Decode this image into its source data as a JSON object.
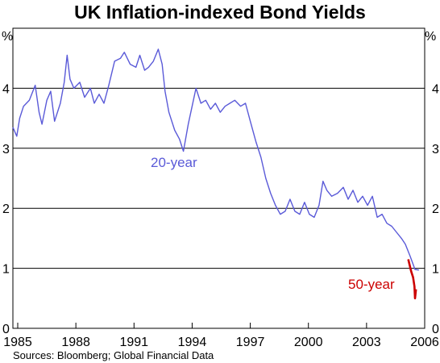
{
  "chart_data": {
    "type": "line",
    "title": "UK Inflation-indexed Bond Yields",
    "y_unit_left": "%",
    "y_unit_right": "%",
    "source": "Sources: Bloomberg; Global Financial Data",
    "x_range": [
      1984.75,
      2006.0
    ],
    "ylim": [
      0,
      5
    ],
    "y_ticks": [
      0,
      1,
      2,
      3,
      4
    ],
    "x_tick_labels": [
      "1985",
      "1988",
      "1991",
      "1994",
      "1997",
      "2000",
      "2003",
      "2006"
    ],
    "x_tick_values": [
      1985,
      1988,
      1991,
      1994,
      1997,
      2000,
      2003,
      2006
    ],
    "grid": true,
    "series": [
      {
        "name": "20-year",
        "color": "#5a5ad8",
        "points": [
          [
            1984.75,
            3.35
          ],
          [
            1984.95,
            3.2
          ],
          [
            1985.1,
            3.5
          ],
          [
            1985.3,
            3.7
          ],
          [
            1985.6,
            3.8
          ],
          [
            1985.9,
            4.05
          ],
          [
            1986.1,
            3.6
          ],
          [
            1986.25,
            3.4
          ],
          [
            1986.5,
            3.8
          ],
          [
            1986.7,
            3.95
          ],
          [
            1986.9,
            3.45
          ],
          [
            1987.2,
            3.75
          ],
          [
            1987.4,
            4.1
          ],
          [
            1987.55,
            4.55
          ],
          [
            1987.7,
            4.15
          ],
          [
            1987.9,
            4.0
          ],
          [
            1988.2,
            4.1
          ],
          [
            1988.45,
            3.85
          ],
          [
            1988.75,
            4.0
          ],
          [
            1988.95,
            3.75
          ],
          [
            1989.2,
            3.9
          ],
          [
            1989.45,
            3.75
          ],
          [
            1989.7,
            4.05
          ],
          [
            1990.0,
            4.45
          ],
          [
            1990.3,
            4.5
          ],
          [
            1990.5,
            4.6
          ],
          [
            1990.8,
            4.4
          ],
          [
            1991.1,
            4.35
          ],
          [
            1991.3,
            4.55
          ],
          [
            1991.55,
            4.3
          ],
          [
            1991.75,
            4.35
          ],
          [
            1992.0,
            4.45
          ],
          [
            1992.25,
            4.65
          ],
          [
            1992.45,
            4.4
          ],
          [
            1992.6,
            3.95
          ],
          [
            1992.8,
            3.6
          ],
          [
            1993.1,
            3.3
          ],
          [
            1993.35,
            3.15
          ],
          [
            1993.55,
            2.95
          ],
          [
            1993.8,
            3.4
          ],
          [
            1994.0,
            3.7
          ],
          [
            1994.2,
            4.0
          ],
          [
            1994.45,
            3.75
          ],
          [
            1994.7,
            3.8
          ],
          [
            1994.95,
            3.65
          ],
          [
            1995.2,
            3.75
          ],
          [
            1995.45,
            3.6
          ],
          [
            1995.7,
            3.7
          ],
          [
            1995.95,
            3.75
          ],
          [
            1996.2,
            3.8
          ],
          [
            1996.5,
            3.7
          ],
          [
            1996.75,
            3.75
          ],
          [
            1997.0,
            3.45
          ],
          [
            1997.3,
            3.1
          ],
          [
            1997.55,
            2.85
          ],
          [
            1997.8,
            2.5
          ],
          [
            1998.05,
            2.25
          ],
          [
            1998.3,
            2.05
          ],
          [
            1998.55,
            1.9
          ],
          [
            1998.8,
            1.95
          ],
          [
            1999.05,
            2.15
          ],
          [
            1999.3,
            1.95
          ],
          [
            1999.55,
            1.9
          ],
          [
            1999.8,
            2.1
          ],
          [
            2000.05,
            1.9
          ],
          [
            2000.3,
            1.85
          ],
          [
            2000.55,
            2.05
          ],
          [
            2000.75,
            2.45
          ],
          [
            2000.95,
            2.3
          ],
          [
            2001.2,
            2.2
          ],
          [
            2001.5,
            2.25
          ],
          [
            2001.8,
            2.35
          ],
          [
            2002.05,
            2.15
          ],
          [
            2002.3,
            2.3
          ],
          [
            2002.55,
            2.1
          ],
          [
            2002.8,
            2.2
          ],
          [
            2003.05,
            2.05
          ],
          [
            2003.3,
            2.2
          ],
          [
            2003.55,
            1.85
          ],
          [
            2003.8,
            1.9
          ],
          [
            2004.05,
            1.75
          ],
          [
            2004.3,
            1.7
          ],
          [
            2004.55,
            1.6
          ],
          [
            2004.8,
            1.5
          ],
          [
            2005.0,
            1.4
          ],
          [
            2005.25,
            1.2
          ],
          [
            2005.5,
            0.98
          ],
          [
            2005.7,
            0.97
          ]
        ]
      },
      {
        "name": "50-year",
        "color": "#cc0000",
        "points": [
          [
            2005.15,
            1.15
          ],
          [
            2005.3,
            0.95
          ],
          [
            2005.4,
            0.85
          ],
          [
            2005.47,
            0.7
          ],
          [
            2005.5,
            0.5
          ],
          [
            2005.55,
            0.65
          ]
        ]
      }
    ]
  }
}
